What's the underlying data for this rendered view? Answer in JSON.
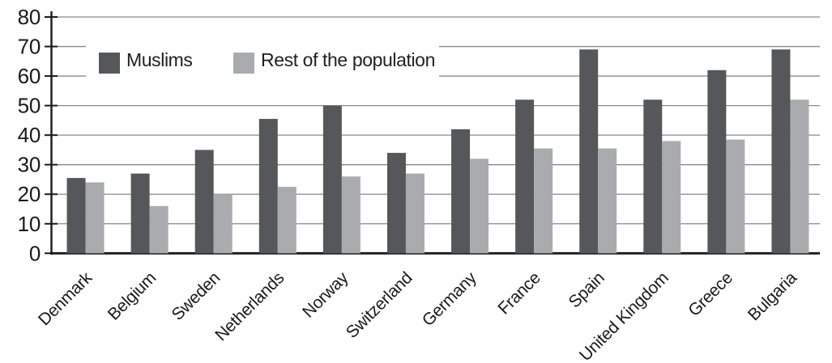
{
  "chart_data": {
    "type": "bar",
    "categories": [
      "Denmark",
      "Belgium",
      "Sweden",
      "Netherlands",
      "Norway",
      "Switzerland",
      "Germany",
      "France",
      "Spain",
      "United Kingdom",
      "Greece",
      "Bulgaria"
    ],
    "series": [
      {
        "name": "Muslims",
        "color": "#55575a",
        "values": [
          25.5,
          27,
          35,
          45.5,
          50,
          34,
          42,
          52,
          69,
          52,
          62,
          69
        ]
      },
      {
        "name": "Rest of the population",
        "color": "#a9abae",
        "values": [
          24,
          16,
          20,
          22.5,
          26,
          27,
          32,
          35.5,
          35.5,
          38,
          38.5,
          52
        ]
      }
    ],
    "xlabel": "",
    "ylabel": "",
    "ylim": [
      0,
      80
    ],
    "yticks": [
      0,
      10,
      20,
      30,
      40,
      50,
      60,
      70,
      80
    ],
    "grid": true,
    "legend_position": "top-left"
  },
  "colors": {
    "background": "#ffffff",
    "gridline": "#8a8a8a",
    "axis": "#1a1a1a",
    "text": "#1a1a1a"
  }
}
